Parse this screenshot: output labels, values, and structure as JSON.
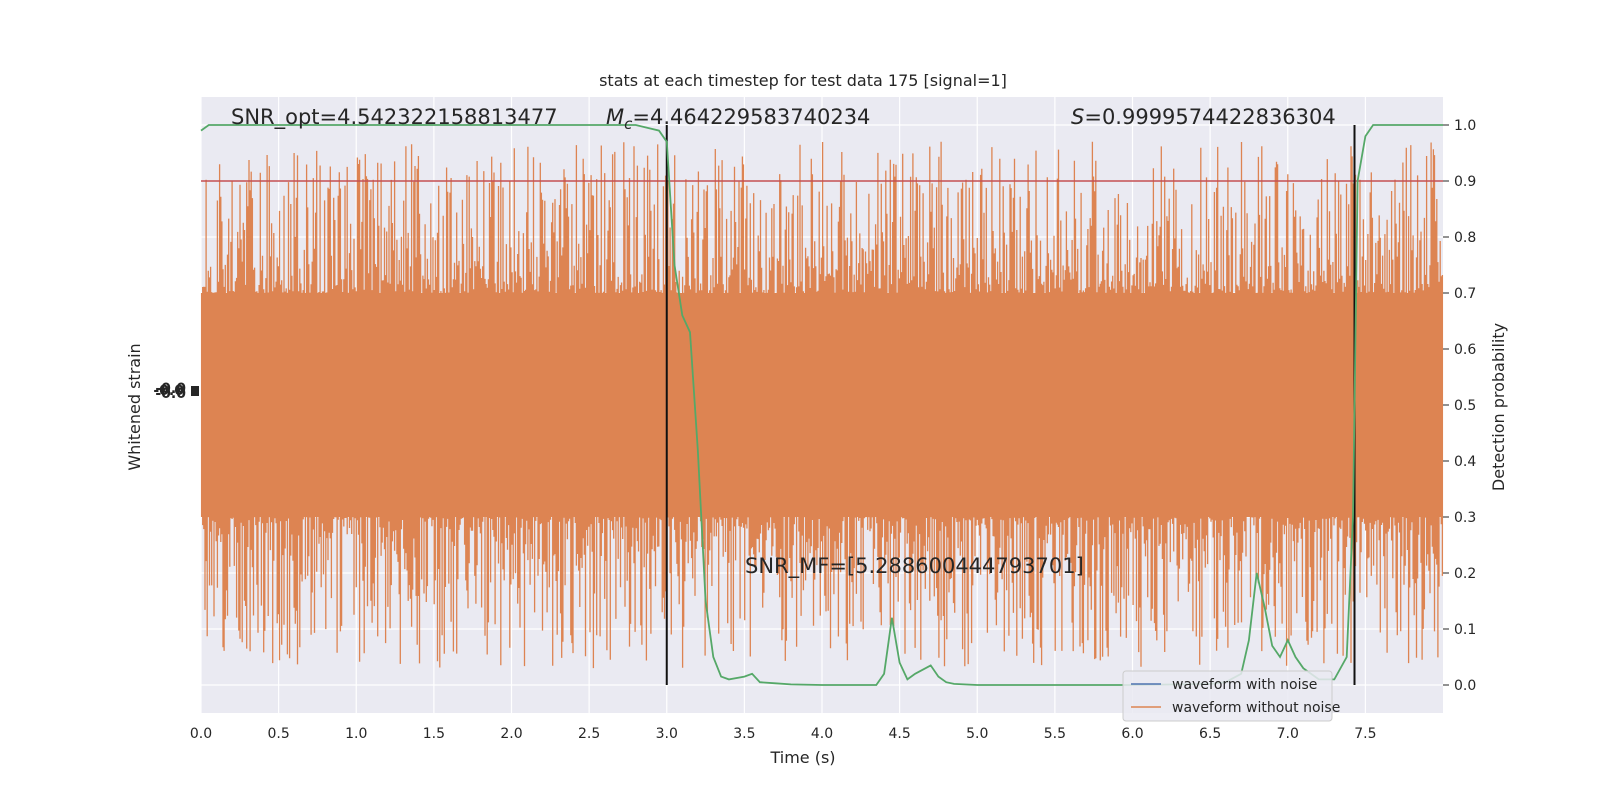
{
  "chart_data": {
    "type": "line",
    "title": "stats at each timestep for test data 175 [signal=1]",
    "xlabel": "Time (s)",
    "ylabel_left": "Whitened strain",
    "ylabel_right": "Detection probability",
    "xlim": [
      0,
      8
    ],
    "ylim_right": [
      -0.05,
      1.05
    ],
    "x_ticks": [
      "0.0",
      "0.5",
      "1.0",
      "1.5",
      "2.0",
      "2.5",
      "3.0",
      "3.5",
      "4.0",
      "4.5",
      "5.0",
      "5.5",
      "6.0",
      "6.5",
      "7.0",
      "7.5"
    ],
    "x_tick_values": [
      0,
      0.5,
      1,
      1.5,
      2,
      2.5,
      3,
      3.5,
      4,
      4.5,
      5,
      5.5,
      6,
      6.5,
      7,
      7.5
    ],
    "y_ticks_right": [
      "0.0",
      "0.1",
      "0.2",
      "0.3",
      "0.4",
      "0.5",
      "0.6",
      "0.7",
      "0.8",
      "0.9",
      "1.0"
    ],
    "y_tick_values_right": [
      0,
      0.1,
      0.2,
      0.3,
      0.4,
      0.5,
      0.6,
      0.7,
      0.8,
      0.9,
      1.0
    ],
    "grid": true,
    "legend_position": "lower-right",
    "threshold": 0.9,
    "vlines": [
      3.0,
      7.43
    ],
    "series": [
      {
        "name": "waveform with noise",
        "color": "#4c72b0"
      },
      {
        "name": "waveform without noise",
        "color": "#dd8452",
        "envelope": {
          "x": [
            0,
            8
          ],
          "core_low": [
            0.3,
            0.3
          ],
          "core_high": [
            0.7,
            0.7
          ],
          "spike_min": 0.0,
          "spike_max": 1.0
        }
      },
      {
        "name": "",
        "color": "#55a868",
        "x": [
          0,
          0.05,
          0.1,
          0.2,
          0.5,
          1.0,
          1.5,
          2.0,
          2.5,
          2.8,
          2.95,
          3.0,
          3.05,
          3.1,
          3.15,
          3.2,
          3.25,
          3.3,
          3.35,
          3.4,
          3.5,
          3.55,
          3.6,
          3.7,
          3.8,
          4.0,
          4.2,
          4.35,
          4.4,
          4.45,
          4.5,
          4.55,
          4.6,
          4.7,
          4.75,
          4.8,
          4.85,
          5.0,
          5.5,
          6.0,
          6.5,
          6.6,
          6.7,
          6.75,
          6.8,
          6.85,
          6.9,
          6.95,
          7.0,
          7.05,
          7.1,
          7.2,
          7.3,
          7.38,
          7.42,
          7.45,
          7.5,
          7.55,
          7.6,
          7.8,
          8.0
        ],
        "y": [
          0.99,
          1.0,
          1.0,
          1.0,
          1.0,
          1.0,
          1.0,
          1.0,
          1.0,
          1.0,
          0.99,
          0.97,
          0.75,
          0.66,
          0.63,
          0.42,
          0.15,
          0.05,
          0.015,
          0.01,
          0.015,
          0.02,
          0.005,
          0.003,
          0.001,
          0.0,
          0.0,
          0.0,
          0.02,
          0.12,
          0.04,
          0.01,
          0.02,
          0.035,
          0.015,
          0.005,
          0.002,
          0.0,
          0.0,
          0.0,
          0.002,
          0.005,
          0.02,
          0.08,
          0.2,
          0.14,
          0.07,
          0.05,
          0.08,
          0.05,
          0.03,
          0.01,
          0.01,
          0.05,
          0.3,
          0.9,
          0.98,
          1.0,
          1.0,
          1.0,
          1.0
        ]
      }
    ],
    "annotations": {
      "snr_opt": "SNR_opt=4.542322158813477",
      "mc_symbol": "M",
      "mc_sub": "c",
      "mc_value": "=4.464229583740234",
      "s_symbol": "S",
      "s_value": "=0.9999574422836304",
      "snr_mf": "SNR_MF=[5.288600444793701]"
    },
    "left_tick_glyph": "-0.0"
  }
}
